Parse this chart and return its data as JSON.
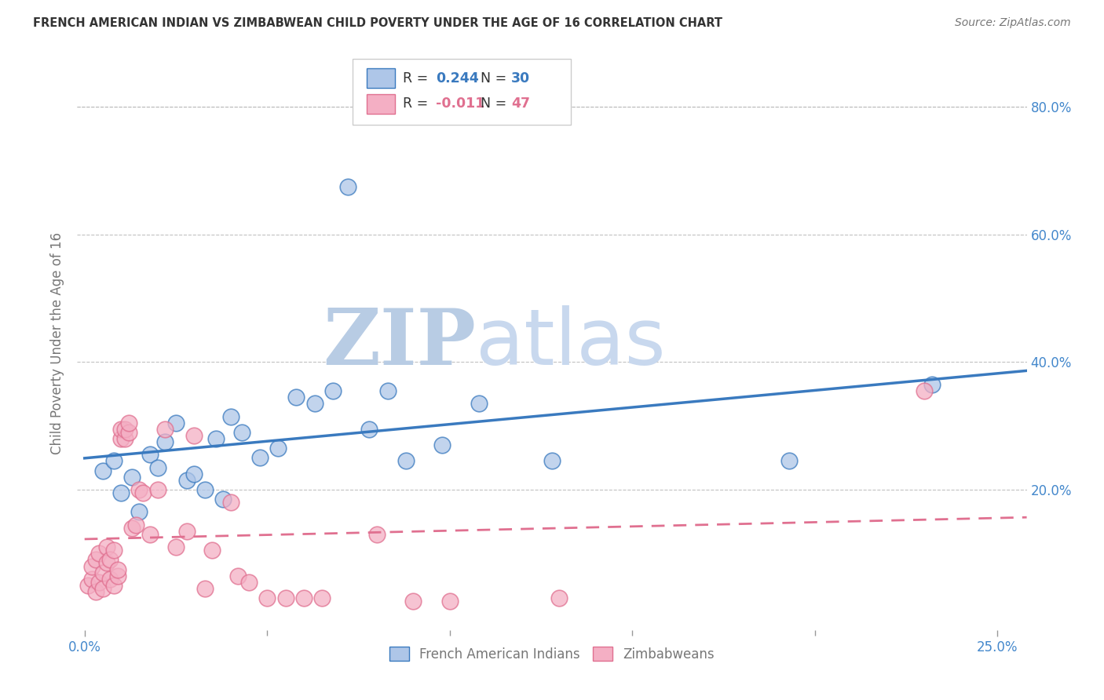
{
  "title": "FRENCH AMERICAN INDIAN VS ZIMBABWEAN CHILD POVERTY UNDER THE AGE OF 16 CORRELATION CHART",
  "source": "Source: ZipAtlas.com",
  "ylabel": "Child Poverty Under the Age of 16",
  "xlabel_ticks_show": [
    "0.0%",
    "25.0%"
  ],
  "xlabel_ticks_pos": [
    0.0,
    0.25
  ],
  "xlabel_minor_ticks": [
    0.05,
    0.1,
    0.15,
    0.2
  ],
  "ylabel_ticks": [
    "20.0%",
    "40.0%",
    "60.0%",
    "80.0%"
  ],
  "ylabel_vals": [
    0.2,
    0.4,
    0.6,
    0.8
  ],
  "xlim": [
    -0.002,
    0.258
  ],
  "ylim": [
    -0.02,
    0.88
  ],
  "legend_labels": [
    "French American Indians",
    "Zimbabweans"
  ],
  "R_blue": 0.244,
  "N_blue": 30,
  "R_pink": -0.011,
  "N_pink": 47,
  "blue_scatter_x": [
    0.005,
    0.008,
    0.01,
    0.013,
    0.015,
    0.018,
    0.02,
    0.022,
    0.025,
    0.028,
    0.03,
    0.033,
    0.036,
    0.038,
    0.04,
    0.043,
    0.048,
    0.053,
    0.058,
    0.063,
    0.068,
    0.072,
    0.078,
    0.083,
    0.088,
    0.098,
    0.108,
    0.128,
    0.193,
    0.232
  ],
  "blue_scatter_y": [
    0.23,
    0.245,
    0.195,
    0.22,
    0.165,
    0.255,
    0.235,
    0.275,
    0.305,
    0.215,
    0.225,
    0.2,
    0.28,
    0.185,
    0.315,
    0.29,
    0.25,
    0.265,
    0.345,
    0.335,
    0.355,
    0.675,
    0.295,
    0.355,
    0.245,
    0.27,
    0.335,
    0.245,
    0.245,
    0.365
  ],
  "pink_scatter_x": [
    0.001,
    0.002,
    0.002,
    0.003,
    0.003,
    0.004,
    0.004,
    0.005,
    0.005,
    0.006,
    0.006,
    0.007,
    0.007,
    0.008,
    0.008,
    0.009,
    0.009,
    0.01,
    0.01,
    0.011,
    0.011,
    0.012,
    0.012,
    0.013,
    0.014,
    0.015,
    0.016,
    0.018,
    0.02,
    0.022,
    0.025,
    0.028,
    0.03,
    0.033,
    0.035,
    0.04,
    0.042,
    0.045,
    0.05,
    0.055,
    0.06,
    0.065,
    0.08,
    0.09,
    0.1,
    0.13,
    0.23
  ],
  "pink_scatter_y": [
    0.05,
    0.06,
    0.08,
    0.04,
    0.09,
    0.055,
    0.1,
    0.045,
    0.07,
    0.085,
    0.11,
    0.06,
    0.09,
    0.05,
    0.105,
    0.065,
    0.075,
    0.28,
    0.295,
    0.28,
    0.295,
    0.29,
    0.305,
    0.14,
    0.145,
    0.2,
    0.195,
    0.13,
    0.2,
    0.295,
    0.11,
    0.135,
    0.285,
    0.045,
    0.105,
    0.18,
    0.065,
    0.055,
    0.03,
    0.03,
    0.03,
    0.03,
    0.13,
    0.025,
    0.025,
    0.03,
    0.355
  ],
  "blue_color": "#aec6e8",
  "pink_color": "#f4afc4",
  "blue_line_color": "#3a7abf",
  "pink_line_color": "#e07090",
  "background_color": "#ffffff",
  "grid_color": "#bbbbbb",
  "title_color": "#333333",
  "axis_label_color": "#777777",
  "tick_label_color": "#4488cc",
  "watermark_zip": "ZIP",
  "watermark_atlas": "atlas",
  "watermark_color_zip": "#b8cce4",
  "watermark_color_atlas": "#c8d8ee"
}
